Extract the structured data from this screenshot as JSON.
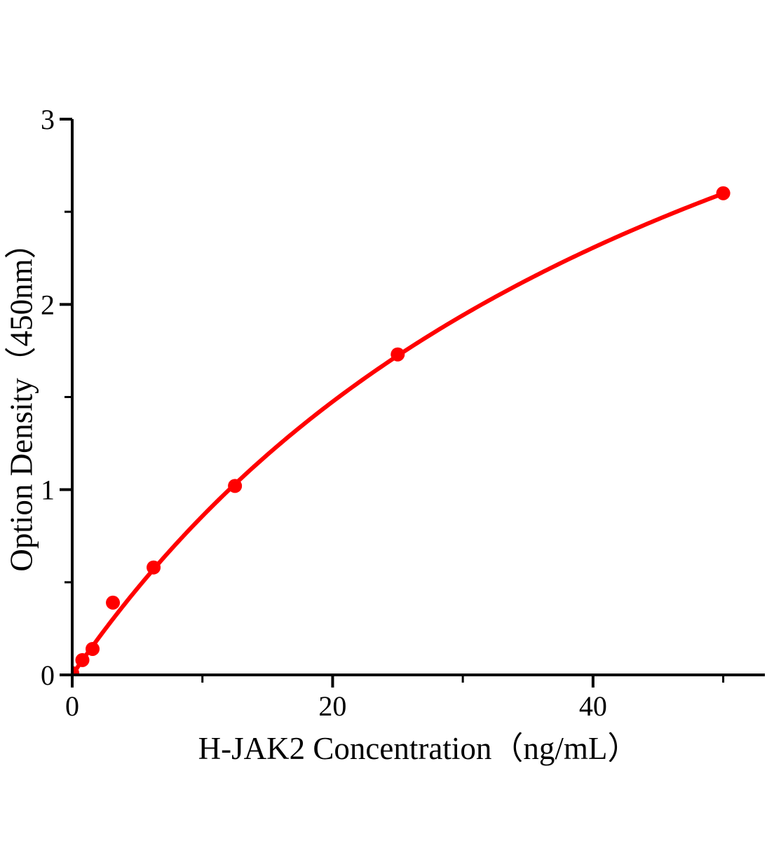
{
  "chart_data": {
    "type": "scatter",
    "title": "",
    "xlabel": "H-JAK2 Concentration（ng/mL）",
    "ylabel": "Option Density（450nm）",
    "x": [
      0,
      0.78125,
      1.5625,
      3.125,
      6.25,
      12.5,
      25,
      50
    ],
    "y": [
      0.01,
      0.08,
      0.14,
      0.39,
      0.58,
      1.02,
      1.73,
      2.6
    ],
    "curve_fit": {
      "model": "y = a*x/(b+x)",
      "a": 5.28,
      "b": 51.6,
      "x_start": 0,
      "x_end": 50
    },
    "xlim": [
      0,
      53.2
    ],
    "ylim": [
      0,
      3
    ],
    "x_ticks": {
      "major": [
        {
          "value": 0,
          "label": "0"
        },
        {
          "value": 20,
          "label": "20"
        },
        {
          "value": 40,
          "label": "40"
        }
      ],
      "minor": [
        10,
        30,
        50
      ]
    },
    "y_ticks": {
      "major": [
        {
          "value": 0,
          "label": "0"
        },
        {
          "value": 1,
          "label": "1"
        },
        {
          "value": 2,
          "label": "2"
        },
        {
          "value": 3,
          "label": "3"
        }
      ],
      "minor": [
        0.5,
        1.5,
        2.5
      ]
    },
    "legend": null,
    "grid": false,
    "colors": {
      "series": "#ff0000",
      "axis": "#000000",
      "background": "#ffffff"
    },
    "marker_radius": 10
  }
}
